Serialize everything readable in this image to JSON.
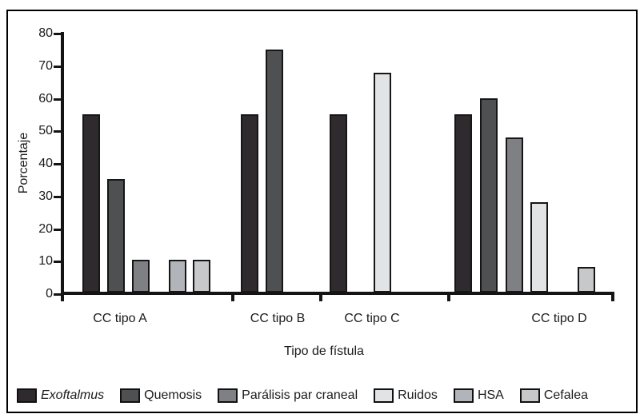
{
  "chart_data": {
    "type": "bar",
    "title": "",
    "xlabel": "Tipo de fístula",
    "ylabel": "Porcentaje",
    "ylim": [
      0,
      80
    ],
    "yticks": [
      0,
      10,
      20,
      30,
      40,
      50,
      60,
      70,
      80
    ],
    "grid": false,
    "legend_position": "bottom",
    "axis_color": "#141414",
    "categories": [
      "CC tipo A",
      "CC tipo B",
      "CC tipo C",
      "CC tipo D"
    ],
    "series": [
      {
        "name": "Exoftalmus",
        "color": "#2e2a2e",
        "italic": true,
        "texture": "dots",
        "values": [
          55,
          55,
          55,
          55
        ]
      },
      {
        "name": "Quemosis",
        "color": "#4e5052",
        "values": [
          35,
          75,
          0,
          60
        ]
      },
      {
        "name": "Parálisis par craneal",
        "color": "#7e8083",
        "values": [
          10,
          0,
          0,
          48
        ]
      },
      {
        "name": "Ruidos",
        "color": "#e2e3e4",
        "values": [
          0,
          0,
          68,
          28
        ]
      },
      {
        "name": "HSA",
        "color": "#b1b4b8",
        "values": [
          10,
          0,
          0,
          0
        ]
      },
      {
        "name": "Cefalea",
        "color": "#c6c8ca",
        "values": [
          10,
          0,
          0,
          8
        ]
      }
    ]
  }
}
